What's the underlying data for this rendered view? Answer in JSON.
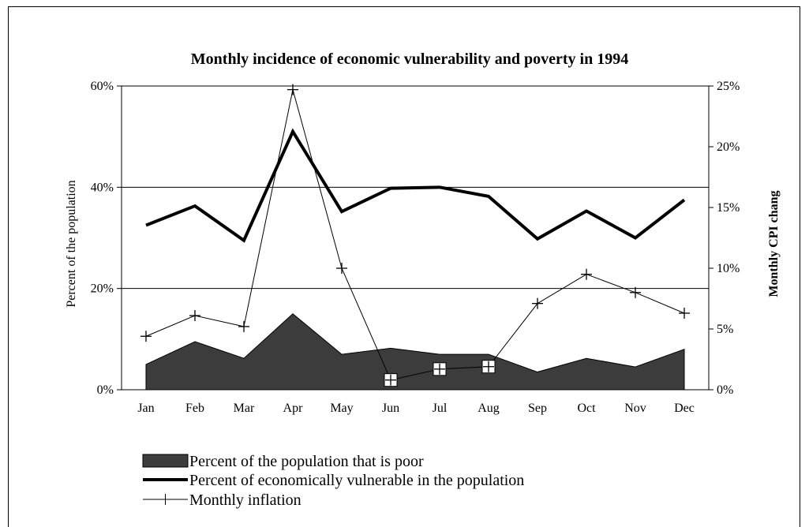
{
  "chart_data": {
    "type": "area+line",
    "title": "Monthly incidence of economic vulnerability and poverty in 1994",
    "ylabel": "Percent of the population",
    "y2label": "Monthly CPI chang",
    "categories": [
      "Jan",
      "Feb",
      "Mar",
      "Apr",
      "May",
      "Jun",
      "Jul",
      "Aug",
      "Sep",
      "Oct",
      "Nov",
      "Dec"
    ],
    "ylim": [
      0,
      60
    ],
    "y2lim": [
      0,
      25
    ],
    "yticks": [
      "0%",
      "20%",
      "40%",
      "60%"
    ],
    "y2ticks": [
      "0%",
      "5%",
      "10%",
      "15%",
      "20%",
      "25%"
    ],
    "grid": true,
    "series": [
      {
        "name": "Percent of the population that is  poor",
        "kind": "area",
        "axis": "left",
        "color": "#3c3c3c",
        "values": [
          5,
          9.5,
          6.2,
          15,
          7,
          8.2,
          7,
          7,
          3.5,
          6.2,
          4.5,
          8
        ]
      },
      {
        "name": "Percent of economically vulnerable in the population",
        "kind": "line",
        "axis": "left",
        "color": "#000000",
        "values": [
          32.5,
          36.3,
          29.5,
          51,
          35.2,
          39.8,
          40,
          38.2,
          29.8,
          35.3,
          30,
          37.5
        ]
      },
      {
        "name": "Monthly inflation",
        "kind": "line-marker",
        "axis": "right",
        "color": "#000000",
        "values": [
          4.4,
          6.1,
          5.2,
          24.7,
          10,
          0.8,
          1.7,
          1.9,
          7.1,
          9.5,
          8,
          6.3
        ]
      }
    ],
    "legend_position": "bottom"
  }
}
